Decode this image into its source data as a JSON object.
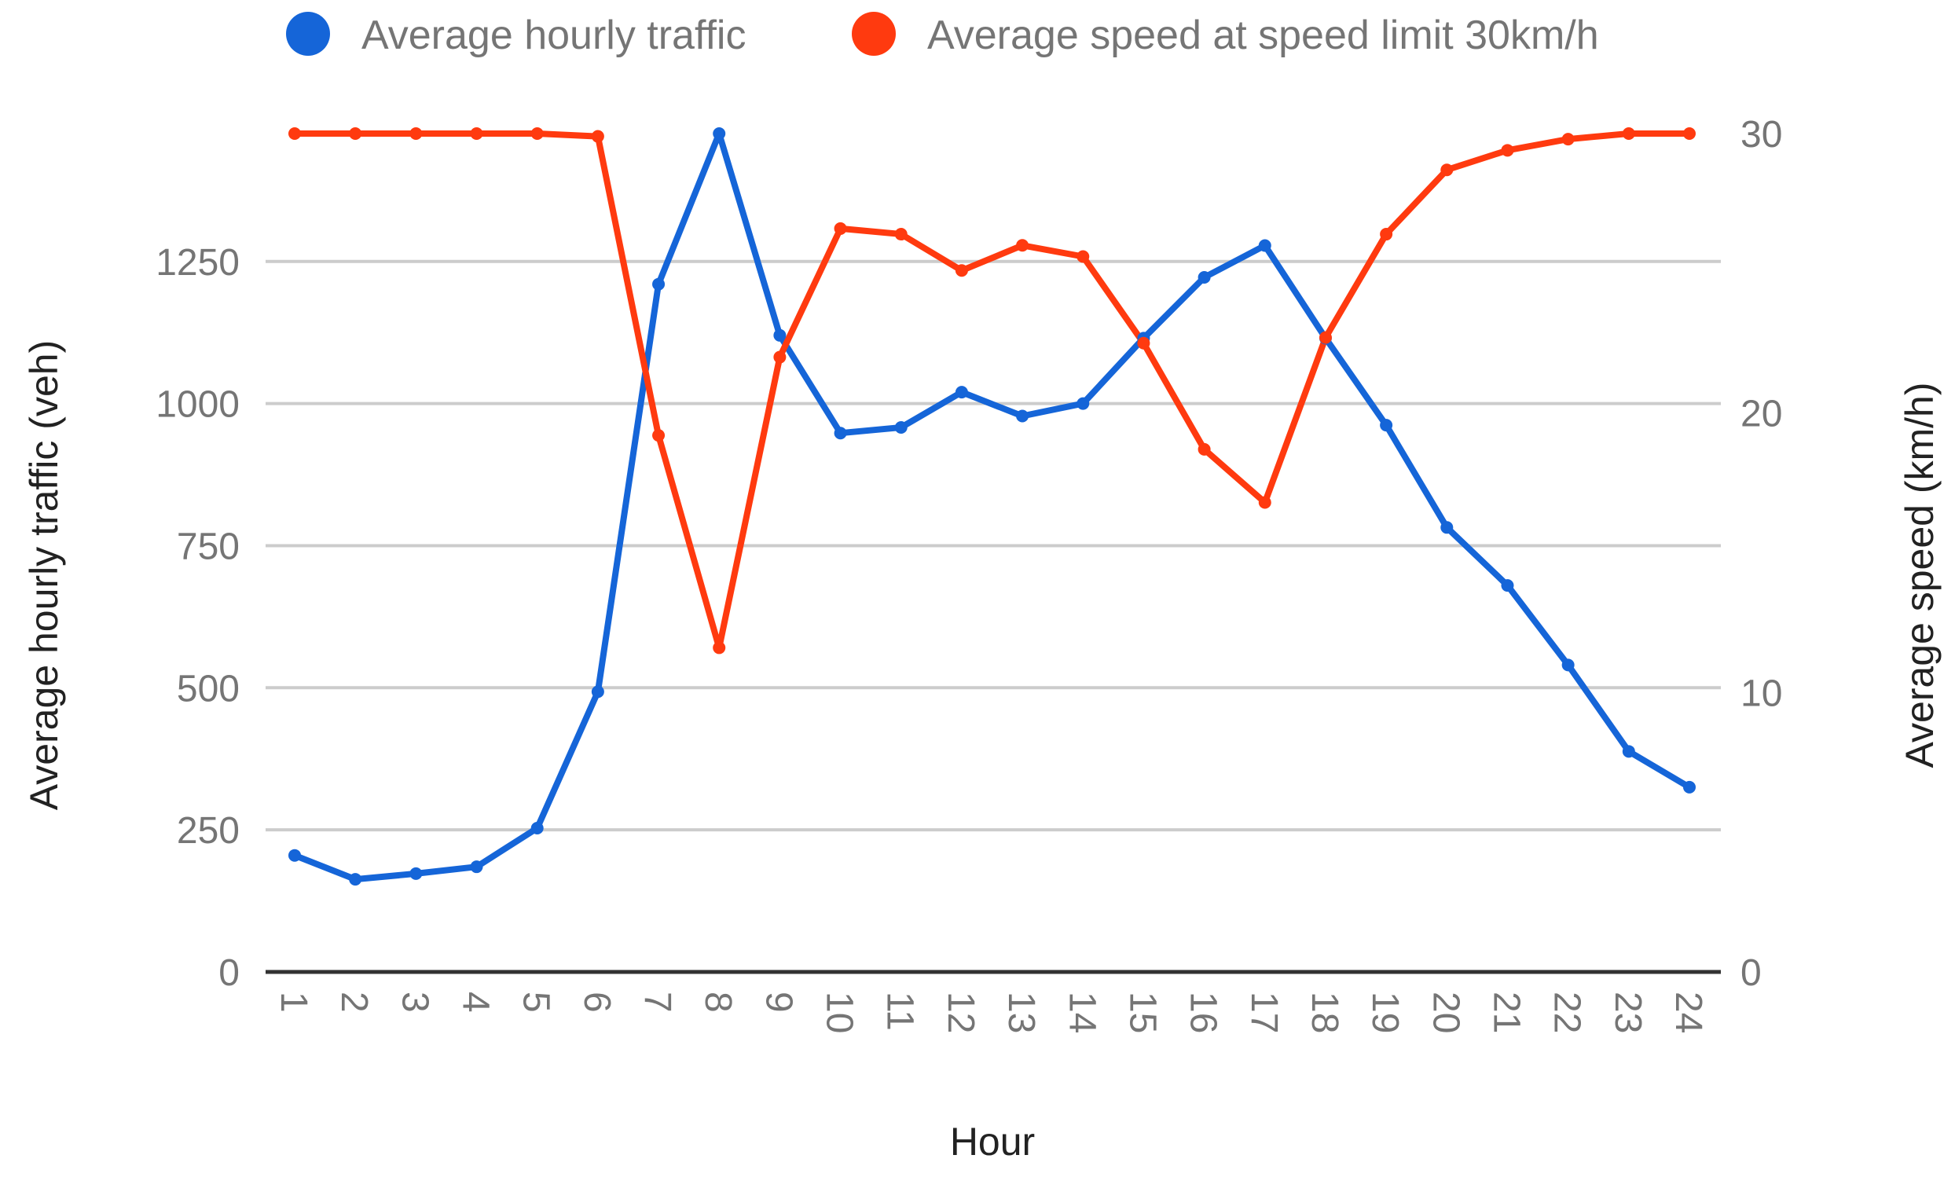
{
  "chart_data": {
    "type": "line",
    "title": "",
    "xlabel": "Hour",
    "ylabel_left": "Average hourly traffic (veh)",
    "ylabel_right": "Average speed (km/h)",
    "legend_position": "top",
    "grid": true,
    "categories": [
      "1",
      "2",
      "3",
      "4",
      "5",
      "6",
      "7",
      "8",
      "9",
      "10",
      "11",
      "12",
      "13",
      "14",
      "15",
      "16",
      "17",
      "18",
      "19",
      "20",
      "21",
      "22",
      "23",
      "24"
    ],
    "left_axis": {
      "min": 0,
      "max": 1475,
      "ticks": [
        "0",
        "250",
        "500",
        "750",
        "1000",
        "1250"
      ]
    },
    "right_axis": {
      "min": 0,
      "max": 30,
      "ticks": [
        "0",
        "10",
        "20",
        "30"
      ]
    },
    "series": [
      {
        "name": "Average hourly traffic",
        "axis": "left",
        "color": "#1565d8",
        "values": [
          205,
          163,
          173,
          185,
          253,
          493,
          1210,
          1475,
          1120,
          948,
          958,
          1020,
          978,
          1000,
          1115,
          1222,
          1278,
          1115,
          962,
          782,
          680,
          540,
          388,
          325
        ]
      },
      {
        "name": "Average speed at speed limit 30km/h",
        "axis": "right",
        "color": "#ff3a0f",
        "values": [
          30,
          30,
          30,
          30,
          30,
          29.9,
          19.2,
          11.6,
          22.0,
          26.6,
          26.4,
          25.1,
          26.0,
          25.6,
          22.5,
          18.7,
          16.8,
          22.7,
          26.4,
          28.7,
          29.4,
          29.8,
          30,
          30
        ]
      }
    ]
  }
}
